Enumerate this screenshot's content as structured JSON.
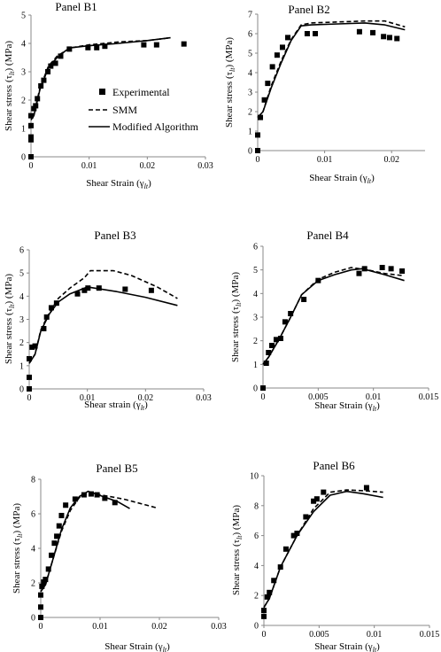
{
  "figure": {
    "legend": [
      {
        "label": "Experimental",
        "style": "marker"
      },
      {
        "label": "SMM",
        "style": "dashed"
      },
      {
        "label": "Modified Algorithm",
        "style": "solid"
      }
    ]
  },
  "chart_data": [
    {
      "type": "scatter",
      "title": "Panel B1",
      "xlabel": "Shear Strain (γlt)",
      "ylabel": "Shear stress (τlt) (MPa)",
      "xlim": [
        0,
        0.03
      ],
      "ylim": [
        0,
        5
      ],
      "xticks": [
        0,
        0.01,
        0.02,
        0.03
      ],
      "xtick_labels": [
        "0",
        "0.01",
        "0.02",
        "0.03"
      ],
      "yticks": [
        0,
        1,
        2,
        3,
        4,
        5
      ],
      "ytick_labels": [
        "0",
        "1",
        "2",
        "3",
        "4",
        "5"
      ],
      "legend": "inside",
      "series": [
        {
          "name": "Experimental",
          "style": "marker",
          "x": [
            0,
            0,
            0,
            0,
            0,
            0.0005,
            0.0008,
            0.0011,
            0.0017,
            0.0022,
            0.0029,
            0.0034,
            0.0042,
            0.0051,
            0.0066,
            0.0098,
            0.0113,
            0.0127,
            0.0194,
            0.0216,
            0.0263
          ],
          "y": [
            0,
            0.6,
            0.7,
            1.1,
            1.45,
            1.7,
            1.8,
            2.05,
            2.5,
            2.7,
            3.0,
            3.2,
            3.3,
            3.55,
            3.8,
            3.85,
            3.85,
            3.9,
            3.95,
            3.95,
            3.98
          ]
        },
        {
          "name": "SMM",
          "style": "dashed",
          "x": [
            0,
            0.0005,
            0.0015,
            0.003,
            0.0045,
            0.006,
            0.007,
            0.01,
            0.015,
            0.02,
            0.024
          ],
          "y": [
            1.4,
            1.5,
            2.4,
            3.2,
            3.55,
            3.75,
            3.85,
            3.95,
            4.05,
            4.1,
            4.2
          ]
        },
        {
          "name": "Modified Algorithm",
          "style": "solid",
          "x": [
            0,
            0.0005,
            0.0015,
            0.003,
            0.0045,
            0.006,
            0.007,
            0.01,
            0.015,
            0.02,
            0.024
          ],
          "y": [
            1.3,
            1.45,
            2.35,
            3.15,
            3.5,
            3.75,
            3.85,
            3.92,
            4.0,
            4.1,
            4.2
          ]
        }
      ]
    },
    {
      "type": "scatter",
      "title": "Panel B2",
      "xlabel": "Shear Strain (γlt)",
      "ylabel": "Shear stress (τlt) (MPa)",
      "xlim": [
        0,
        0.025
      ],
      "ylim": [
        0,
        7
      ],
      "xticks": [
        0,
        0.01,
        0.02
      ],
      "xtick_labels": [
        "0",
        "0.01",
        "0.02"
      ],
      "yticks": [
        0,
        1,
        2,
        3,
        4,
        5,
        6,
        7
      ],
      "ytick_labels": [
        "0",
        "1",
        "2",
        "3",
        "4",
        "5",
        "6",
        "7"
      ],
      "series": [
        {
          "name": "Experimental",
          "style": "marker",
          "x": [
            0,
            0,
            0.0004,
            0.001,
            0.0015,
            0.0022,
            0.0029,
            0.0037,
            0.0045,
            0.0074,
            0.0086,
            0.0152,
            0.0172,
            0.0188,
            0.0197,
            0.0208
          ],
          "y": [
            0,
            0.8,
            1.7,
            2.6,
            3.45,
            4.3,
            4.9,
            5.3,
            5.8,
            6.0,
            6.0,
            6.1,
            6.05,
            5.85,
            5.8,
            5.75
          ]
        },
        {
          "name": "SMM",
          "style": "dashed",
          "x": [
            0,
            0.0008,
            0.002,
            0.0035,
            0.005,
            0.0065,
            0.008,
            0.012,
            0.016,
            0.019,
            0.022
          ],
          "y": [
            1.7,
            2.0,
            3.3,
            4.6,
            5.7,
            6.45,
            6.55,
            6.6,
            6.65,
            6.65,
            6.35
          ]
        },
        {
          "name": "Modified Algorithm",
          "style": "solid",
          "x": [
            0,
            0.0008,
            0.002,
            0.0035,
            0.005,
            0.0065,
            0.008,
            0.012,
            0.016,
            0.019,
            0.022
          ],
          "y": [
            1.7,
            2.0,
            3.2,
            4.5,
            5.65,
            6.4,
            6.45,
            6.5,
            6.55,
            6.45,
            6.2
          ]
        }
      ]
    },
    {
      "type": "scatter",
      "title": "Panel B3",
      "xlabel": "Shear strain (γlt)",
      "ylabel": "Shear stress (τlt) (MPa)",
      "xlim": [
        0,
        0.03
      ],
      "ylim": [
        0,
        6
      ],
      "xticks": [
        0,
        0.01,
        0.02,
        0.03
      ],
      "xtick_labels": [
        "0",
        "0.01",
        "0.02",
        "0.03"
      ],
      "yticks": [
        0,
        1,
        2,
        3,
        4,
        5,
        6
      ],
      "ytick_labels": [
        "0",
        "1",
        "2",
        "3",
        "4",
        "5",
        "6"
      ],
      "series": [
        {
          "name": "Experimental",
          "style": "marker",
          "x": [
            0,
            0,
            0,
            0.0005,
            0.001,
            0.0025,
            0.003,
            0.0038,
            0.0047,
            0.0083,
            0.0095,
            0.0101,
            0.012,
            0.0165,
            0.021
          ],
          "y": [
            0,
            0.5,
            1.3,
            1.8,
            1.85,
            2.6,
            3.1,
            3.5,
            3.7,
            4.1,
            4.25,
            4.35,
            4.35,
            4.3,
            4.25
          ]
        },
        {
          "name": "SMM",
          "style": "dashed",
          "x": [
            0,
            0.001,
            0.002,
            0.0035,
            0.005,
            0.007,
            0.0095,
            0.0105,
            0.0145,
            0.0175,
            0.022,
            0.0255
          ],
          "y": [
            1.1,
            1.5,
            2.55,
            3.3,
            3.9,
            4.35,
            4.8,
            5.1,
            5.1,
            4.9,
            4.4,
            3.9
          ]
        },
        {
          "name": "Modified Algorithm",
          "style": "solid",
          "x": [
            0,
            0.001,
            0.002,
            0.0035,
            0.005,
            0.007,
            0.0095,
            0.01,
            0.015,
            0.02,
            0.0255
          ],
          "y": [
            1.1,
            1.5,
            2.5,
            3.25,
            3.75,
            4.1,
            4.35,
            4.4,
            4.2,
            3.95,
            3.6
          ]
        }
      ]
    },
    {
      "type": "scatter",
      "title": "Panel B4",
      "xlabel": "Shear Strain (γlt)",
      "ylabel": "Shear stress (τlt) (MPa)",
      "xlim": [
        0,
        0.015
      ],
      "ylim": [
        0,
        6
      ],
      "xticks": [
        0,
        0.005,
        0.01,
        0.015
      ],
      "xtick_labels": [
        "0",
        "0.005",
        "0.01",
        "0.015"
      ],
      "yticks": [
        0,
        1,
        2,
        3,
        4,
        5,
        6
      ],
      "ytick_labels": [
        "0",
        "1",
        "2",
        "3",
        "4",
        "5",
        "6"
      ],
      "series": [
        {
          "name": "Experimental",
          "style": "marker",
          "x": [
            0,
            0.0003,
            0.0005,
            0.0008,
            0.0012,
            0.0016,
            0.002,
            0.0025,
            0.0037,
            0.005,
            0.0087,
            0.0092,
            0.0108,
            0.0116,
            0.0126
          ],
          "y": [
            0,
            1.05,
            1.5,
            1.8,
            2.05,
            2.1,
            2.8,
            3.15,
            3.75,
            4.55,
            4.85,
            5.05,
            5.1,
            5.05,
            4.95
          ]
        },
        {
          "name": "SMM",
          "style": "dashed",
          "x": [
            0,
            0.0005,
            0.0015,
            0.0025,
            0.0035,
            0.005,
            0.0065,
            0.008,
            0.0095,
            0.011,
            0.0128
          ],
          "y": [
            1.0,
            1.3,
            2.1,
            3.0,
            3.95,
            4.6,
            4.9,
            5.1,
            5.0,
            4.85,
            4.75
          ]
        },
        {
          "name": "Modified Algorithm",
          "style": "solid",
          "x": [
            0,
            0.0005,
            0.0015,
            0.0025,
            0.0035,
            0.005,
            0.0065,
            0.008,
            0.009,
            0.011,
            0.0128
          ],
          "y": [
            1.0,
            1.3,
            2.1,
            3.0,
            3.95,
            4.55,
            4.8,
            5.0,
            5.05,
            4.8,
            4.55
          ]
        }
      ]
    },
    {
      "type": "scatter",
      "title": "Panel B5",
      "xlabel": "Shear Strain (γlt)",
      "ylabel": "Shear stress (τlt) (MPa)",
      "xlim": [
        0,
        0.03
      ],
      "ylim": [
        0,
        8
      ],
      "xticks": [
        0,
        0.01,
        0.02,
        0.03
      ],
      "xtick_labels": [
        "0",
        "0.01",
        "0.02",
        "0.03"
      ],
      "yticks": [
        0,
        2,
        4,
        6,
        8
      ],
      "ytick_labels": [
        "0",
        "2",
        "4",
        "6",
        "8"
      ],
      "series": [
        {
          "name": "Experimental",
          "style": "marker",
          "x": [
            0,
            0,
            0,
            0.0002,
            0.0005,
            0.0008,
            0.0013,
            0.0018,
            0.0023,
            0.0027,
            0.0031,
            0.0035,
            0.0042,
            0.0058,
            0.0073,
            0.0085,
            0.0095,
            0.0108,
            0.0125
          ],
          "y": [
            0,
            0.6,
            1.3,
            1.8,
            2.05,
            2.2,
            2.8,
            3.6,
            4.3,
            4.7,
            5.3,
            5.9,
            6.5,
            6.85,
            7.1,
            7.15,
            7.1,
            6.9,
            6.65
          ]
        },
        {
          "name": "SMM",
          "style": "dashed",
          "x": [
            0,
            0.0008,
            0.002,
            0.0035,
            0.005,
            0.0065,
            0.008,
            0.01,
            0.014,
            0.0195
          ],
          "y": [
            1.5,
            1.9,
            3.3,
            5.0,
            6.2,
            6.95,
            7.2,
            7.1,
            6.85,
            6.35
          ]
        },
        {
          "name": "Modified Algorithm",
          "style": "solid",
          "x": [
            0,
            0.0008,
            0.002,
            0.0035,
            0.005,
            0.0065,
            0.008,
            0.0105,
            0.013,
            0.015
          ],
          "y": [
            1.5,
            1.9,
            3.3,
            5.1,
            6.35,
            7.0,
            7.3,
            7.0,
            6.7,
            6.3
          ]
        }
      ]
    },
    {
      "type": "scatter",
      "title": "Panel B6",
      "xlabel": "Shear Strain (γlt)",
      "ylabel": "Shear stress (τlt) (MPa)",
      "xlim": [
        0,
        0.015
      ],
      "ylim": [
        0,
        10
      ],
      "xticks": [
        0,
        0.005,
        0.01,
        0.015
      ],
      "xtick_labels": [
        "0",
        "0.005",
        "0.01",
        "0.015"
      ],
      "yticks": [
        0,
        2,
        4,
        6,
        8,
        10
      ],
      "ytick_labels": [
        "0",
        "2",
        "4",
        "6",
        "8",
        "10"
      ],
      "series": [
        {
          "name": "Experimental",
          "style": "marker",
          "x": [
            0,
            0,
            0.0003,
            0.0005,
            0.0009,
            0.0015,
            0.002,
            0.0027,
            0.003,
            0.0038,
            0.0045,
            0.0048,
            0.0054,
            0.0093
          ],
          "y": [
            0.6,
            1.0,
            1.9,
            2.2,
            3.0,
            3.9,
            5.1,
            6.0,
            6.15,
            7.25,
            8.3,
            8.45,
            8.9,
            9.2
          ]
        },
        {
          "name": "SMM",
          "style": "dashed",
          "x": [
            0,
            0.0005,
            0.0015,
            0.003,
            0.0045,
            0.006,
            0.0075,
            0.009,
            0.0108
          ],
          "y": [
            1.2,
            1.8,
            3.9,
            6.0,
            7.8,
            8.9,
            9.05,
            9.0,
            8.9
          ]
        },
        {
          "name": "Modified Algorithm",
          "style": "solid",
          "x": [
            0,
            0.0005,
            0.0015,
            0.003,
            0.0045,
            0.006,
            0.0075,
            0.009,
            0.0108
          ],
          "y": [
            1.2,
            1.8,
            3.9,
            6.0,
            7.6,
            8.7,
            8.95,
            8.8,
            8.55
          ]
        }
      ]
    }
  ]
}
